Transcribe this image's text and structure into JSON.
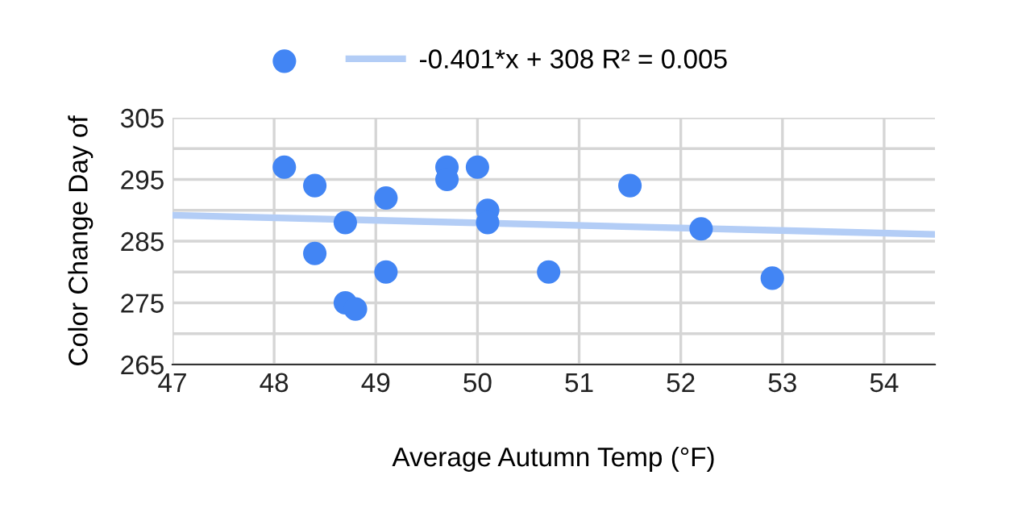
{
  "chart_data": {
    "type": "scatter",
    "xlabel": "Average Autumn Temp (°F)",
    "ylabel": "Color Change Day of",
    "xlim": [
      47,
      54.5
    ],
    "xticks": [
      47,
      48,
      49,
      50,
      51,
      52,
      53,
      54
    ],
    "ylim": [
      265,
      305
    ],
    "yticks": [
      265,
      {
        "value": 270,
        "label": null
      },
      275,
      {
        "value": 280,
        "label": null
      },
      285,
      {
        "value": 290,
        "label": null
      },
      295,
      {
        "value": 300,
        "label": null
      },
      305
    ],
    "grid": true,
    "legend": "top",
    "series": [
      {
        "marker": "circle",
        "color": "#4285f4",
        "x": [
          48.1,
          48.4,
          48.7,
          48.4,
          48.7,
          48.8,
          49.1,
          49.1,
          49.7,
          49.7,
          50.0,
          50.1,
          50.1,
          50.7,
          51.5,
          52.2,
          52.9
        ],
        "values": [
          297,
          294,
          288,
          283,
          275,
          274,
          292,
          280,
          297,
          295,
          297,
          290,
          288,
          280,
          294,
          287,
          279
        ]
      },
      {
        "type": "line",
        "name": "-0.401*x + 308 R² = 0.005",
        "color": "#b3cdf6",
        "marker": "none",
        "line_style": "solid",
        "x": [
          47,
          54.5
        ],
        "values": [
          289.2,
          286.1
        ]
      }
    ]
  }
}
